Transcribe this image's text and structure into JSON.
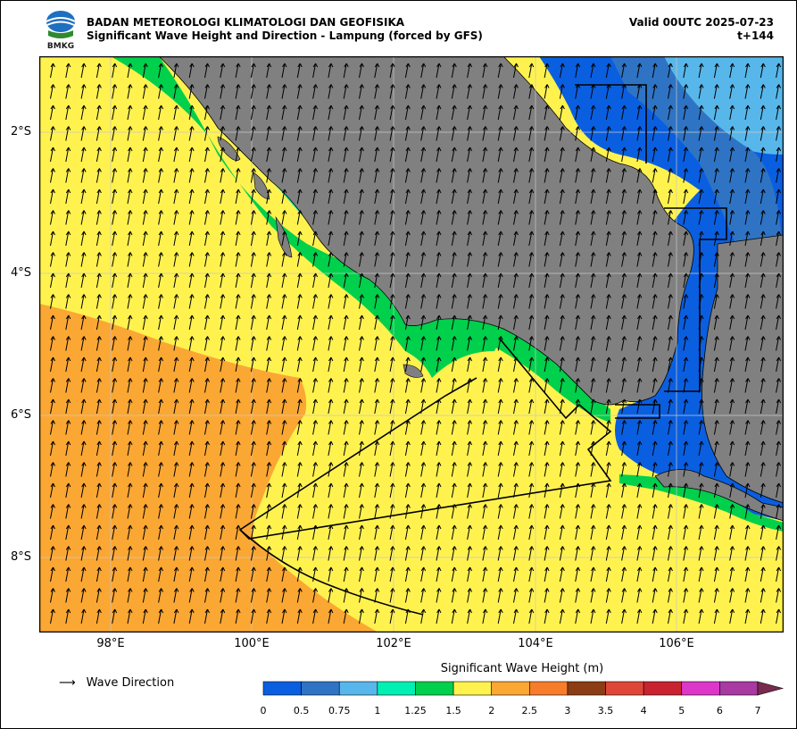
{
  "header": {
    "org": "BADAN METEOROLOGI KLIMATOLOGI DAN GEOFISIKA",
    "product": "Significant Wave Height and Direction - Lampung (forced by GFS)",
    "valid": "Valid 00UTC 2025-07-23",
    "lead": "t+144",
    "logo_text": "BMKG"
  },
  "map": {
    "lat_labels": [
      "2°S",
      "4°S",
      "6°S",
      "8°S"
    ],
    "lon_labels": [
      "98°E",
      "100°E",
      "102°E",
      "104°E",
      "106°E"
    ],
    "land_color": "#808080",
    "grid": true,
    "wave_direction_icon": "north-arrow-icon"
  },
  "legend": {
    "wave_direction_label": "Wave Direction"
  },
  "colorbar": {
    "title": "Significant Wave Height (m)",
    "ticks": [
      "0",
      "0.5",
      "0.75",
      "1",
      "1.25",
      "1.5",
      "2",
      "2.5",
      "3",
      "3.5",
      "4",
      "5",
      "6",
      "7"
    ],
    "colors": [
      "#0a5fe0",
      "#2f74c4",
      "#58b7ea",
      "#00f0b4",
      "#00d04c",
      "#fff24f",
      "#fba733",
      "#f77d2b",
      "#8c3d14",
      "#e04638",
      "#c8232f",
      "#dd37c9",
      "#a939a3"
    ],
    "extend_color": "#7a2a4e"
  }
}
